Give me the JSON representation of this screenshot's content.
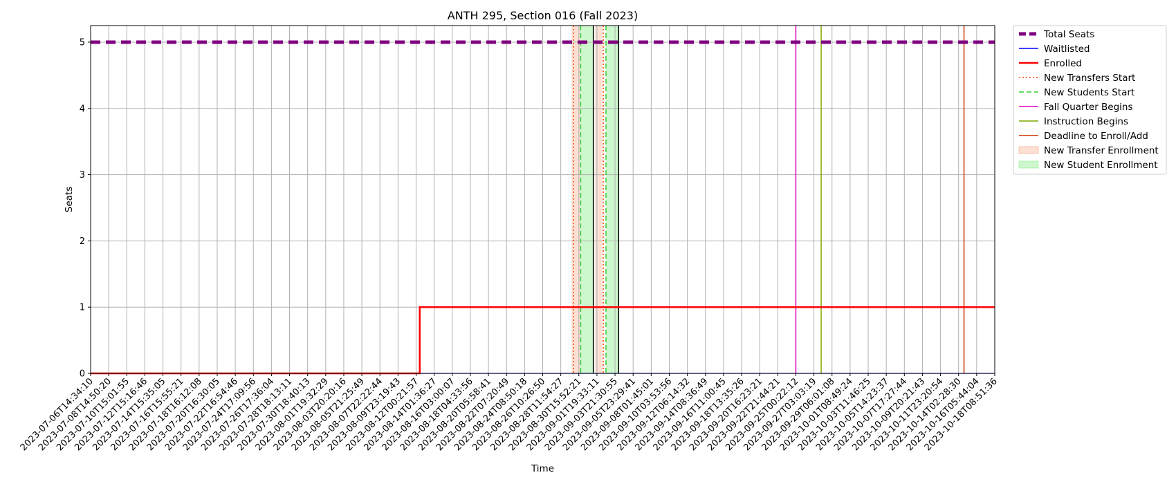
{
  "chart_data": {
    "type": "line",
    "title": "ANTH 295, Section 016 (Fall 2023)",
    "xlabel": "Time",
    "ylabel": "Seats",
    "ylim": [
      0,
      5.25
    ],
    "yticks": [
      "0",
      "1",
      "2",
      "3",
      "4",
      "5"
    ],
    "grid": true,
    "legend_position": "outside-right-top",
    "x": [
      "2023-07-06T14:34:10",
      "2023-07-08T14:50:20",
      "2023-07-10T15:01:55",
      "2023-07-12T15:16:46",
      "2023-07-14T15:35:05",
      "2023-07-16T15:55:21",
      "2023-07-18T16:12:08",
      "2023-07-20T16:30:05",
      "2023-07-22T16:54:46",
      "2023-07-24T17:09:56",
      "2023-07-26T17:36:04",
      "2023-07-28T18:13:11",
      "2023-07-30T18:40:13",
      "2023-08-01T19:32:29",
      "2023-08-03T20:20:16",
      "2023-08-05T21:25:49",
      "2023-08-07T22:22:44",
      "2023-08-09T23:19:43",
      "2023-08-12T00:21:57",
      "2023-08-14T01:36:27",
      "2023-08-16T03:00:07",
      "2023-08-18T04:33:56",
      "2023-08-20T05:58:41",
      "2023-08-22T07:20:49",
      "2023-08-24T08:50:18",
      "2023-08-26T10:26:50",
      "2023-08-28T11:54:27",
      "2023-08-30T15:52:21",
      "2023-09-01T19:33:11",
      "2023-09-03T21:30:55",
      "2023-09-05T23:29:41",
      "2023-09-08T01:45:01",
      "2023-09-10T03:53:56",
      "2023-09-12T06:14:32",
      "2023-09-14T08:36:49",
      "2023-09-16T11:00:45",
      "2023-09-18T13:35:26",
      "2023-09-20T16:23:21",
      "2023-09-22T21:44:21",
      "2023-09-25T00:22:12",
      "2023-09-27T03:03:19",
      "2023-09-29T06:01:08",
      "2023-10-01T08:49:24",
      "2023-10-03T11:46:25",
      "2023-10-05T14:23:37",
      "2023-10-07T17:27:44",
      "2023-10-09T20:21:43",
      "2023-10-11T23:20:54",
      "2023-10-14T02:28:30",
      "2023-10-16T05:44:04",
      "2023-10-18T08:51:36"
    ],
    "series": [
      {
        "name": "Total Seats",
        "color": "#800080",
        "style": "dashed-thick",
        "constant": 5
      },
      {
        "name": "Waitlisted",
        "color": "#0000ff",
        "style": "solid",
        "constant": 0
      },
      {
        "name": "Enrolled",
        "color": "#ff0000",
        "style": "solid-thick",
        "step_at_index": 18.2,
        "before": 0,
        "after": 1
      }
    ],
    "events": [
      {
        "name": "New Transfers Start",
        "color": "#ff4500",
        "style": "dotted",
        "positions": [
          26.7,
          28.35
        ]
      },
      {
        "name": "New Students Start",
        "color": "#32cd32",
        "style": "dashed",
        "positions": [
          27.1,
          28.5
        ]
      },
      {
        "name": "Fall Quarter Begins",
        "color": "#e000c0",
        "style": "solid",
        "positions": [
          39.0
        ]
      },
      {
        "name": "Instruction Begins",
        "color": "#7fa800",
        "style": "solid",
        "positions": [
          40.4
        ]
      },
      {
        "name": "Deadline to Enroll/Add",
        "color": "#cc3300",
        "style": "solid",
        "positions": [
          48.3
        ]
      }
    ],
    "spans": [
      {
        "name": "New Transfer Enrollment",
        "color": "#f4a582",
        "opacity": 0.35,
        "ranges": [
          [
            26.6,
            27.1
          ],
          [
            27.9,
            28.3
          ]
        ]
      },
      {
        "name": "New Student Enrollment",
        "color": "#90ee90",
        "opacity": 0.45,
        "ranges": [
          [
            27.1,
            27.8
          ],
          [
            28.5,
            29.2
          ]
        ]
      }
    ],
    "black_lines": [
      27.8,
      29.2
    ]
  }
}
